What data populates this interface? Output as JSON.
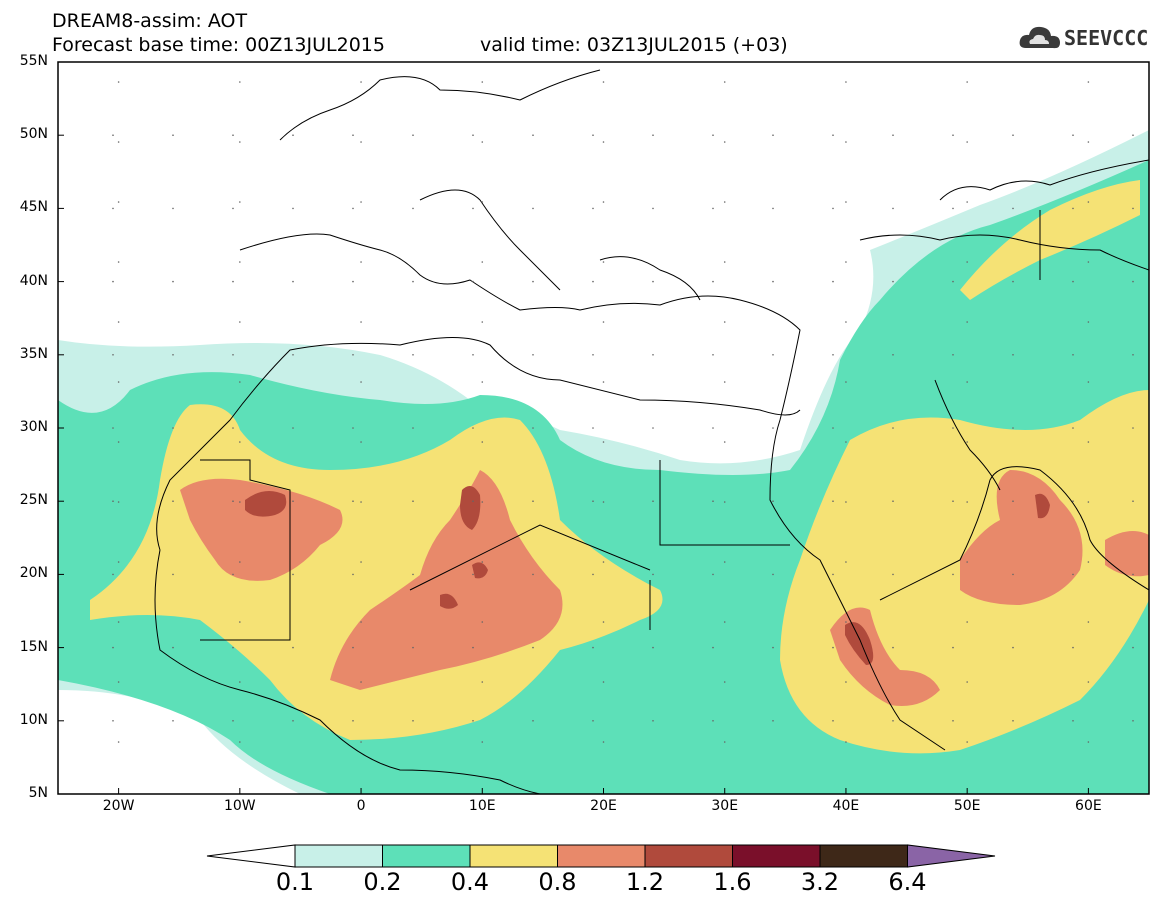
{
  "header": {
    "title": "DREAM8-assim: AOT",
    "forecast_base": "Forecast base time: 00Z13JUL2015",
    "valid_time": "valid time: 03Z13JUL2015 (+03)"
  },
  "logo": {
    "text": "SEEVCCC",
    "icon": "cloud-icon"
  },
  "map": {
    "lat_labels": [
      "55N",
      "50N",
      "45N",
      "40N",
      "35N",
      "30N",
      "25N",
      "20N",
      "15N",
      "10N",
      "5N"
    ],
    "lon_labels": [
      "20W",
      "10W",
      "0",
      "10E",
      "20E",
      "30E",
      "40E",
      "50E",
      "60E"
    ],
    "extent": {
      "lon_min": -25,
      "lon_max": 65,
      "lat_min": 5,
      "lat_max": 55
    }
  },
  "colorbar": {
    "labels": [
      "0.1",
      "0.2",
      "0.4",
      "0.8",
      "1.2",
      "1.6",
      "3.2",
      "6.4"
    ],
    "colors": [
      "#ffffff",
      "#c8f0e8",
      "#5de0b8",
      "#f5e275",
      "#e8896a",
      "#b04a3c",
      "#7a0f2a",
      "#3e2818",
      "#8a64a6"
    ]
  }
}
